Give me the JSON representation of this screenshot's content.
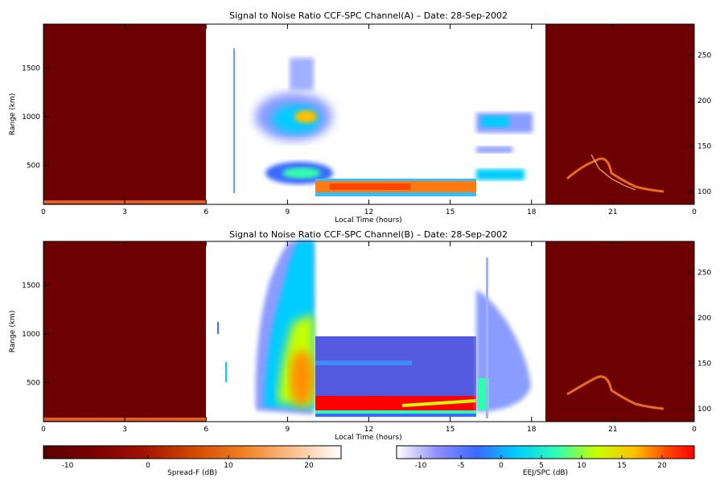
{
  "chart_data": [
    {
      "type": "heatmap",
      "title": "Signal to Noise Ratio CCF-SPC Channel(A) – Date: 28-Sep-2002",
      "xlabel": "Local Time (hours)",
      "ylabel": "Range (km)",
      "xlim": [
        0,
        24
      ],
      "ylim": [
        100,
        1950
      ],
      "x_ticks": [
        "0",
        "3",
        "6",
        "9",
        "12",
        "15",
        "18",
        "21",
        "0"
      ],
      "y_ticks": [
        "500",
        "1000",
        "1500"
      ],
      "y_right_ticks": [
        "100",
        "150",
        "200",
        "250"
      ],
      "regions": [
        {
          "name": "Spread-F",
          "x_range": [
            0,
            6.1
          ],
          "scale": "Spread-F (dB)"
        },
        {
          "name": "EEJ/SPC",
          "x_range": [
            6.1,
            18.5
          ],
          "scale": "EEJ/SPC (dB)"
        },
        {
          "name": "Spread-F",
          "x_range": [
            18.5,
            24
          ],
          "scale": "Spread-F (dB)"
        }
      ],
      "echo_layers": [
        {
          "x_range": [
            9.5,
            10.1
          ],
          "range_km": [
            350,
            1600
          ]
        },
        {
          "x_range": [
            10.1,
            16
          ],
          "range_km": [
            160,
            350
          ]
        },
        {
          "x_range": [
            16,
            18.1
          ],
          "range_km": [
            250,
            1100
          ]
        }
      ]
    },
    {
      "type": "heatmap",
      "title": "Signal to Noise Ratio CCF-SPC Channel(B) – Date: 28-Sep-2002",
      "xlabel": "Local Time (hours)",
      "ylabel": "Range (km)",
      "xlim": [
        0,
        24
      ],
      "ylim": [
        100,
        1950
      ],
      "x_ticks": [
        "0",
        "3",
        "6",
        "9",
        "12",
        "15",
        "18",
        "21",
        "0"
      ],
      "y_ticks": [
        "500",
        "1000",
        "1500"
      ],
      "y_right_ticks": [
        "100",
        "150",
        "200",
        "250"
      ],
      "regions": [
        {
          "name": "Spread-F",
          "x_range": [
            0,
            6.1
          ],
          "scale": "Spread-F (dB)"
        },
        {
          "name": "EEJ/SPC",
          "x_range": [
            6.1,
            18.5
          ],
          "scale": "EEJ/SPC (dB)"
        },
        {
          "name": "Spread-F",
          "x_range": [
            18.5,
            24
          ],
          "scale": "Spread-F (dB)"
        }
      ],
      "echo_layers": [
        {
          "x_range": [
            8,
            10.1
          ],
          "range_km": [
            200,
            1950
          ]
        },
        {
          "x_range": [
            10.1,
            16
          ],
          "range_km": [
            150,
            1000
          ]
        },
        {
          "x_range": [
            16,
            18.1
          ],
          "range_km": [
            200,
            1300
          ]
        }
      ]
    }
  ],
  "colorbars": [
    {
      "label": "Spread-F (dB)",
      "range": [
        -13,
        24
      ],
      "ticks": [
        "-10",
        "0",
        "10",
        "20"
      ],
      "colors": [
        "#5a0000",
        "#8b0000",
        "#b82a00",
        "#e56a10",
        "#f5a050",
        "#fde0c0",
        "#ffffff"
      ]
    },
    {
      "label": "EEJ/SPC (dB)",
      "range": [
        -13,
        24
      ],
      "ticks": [
        "-10",
        "-5",
        "0",
        "5",
        "10",
        "15",
        "20"
      ],
      "colors": [
        "#ffffff",
        "#7b7bff",
        "#3a6bff",
        "#00ccff",
        "#30ffb0",
        "#c8ff00",
        "#ffcc00",
        "#ff5500",
        "#ff0000"
      ]
    }
  ]
}
